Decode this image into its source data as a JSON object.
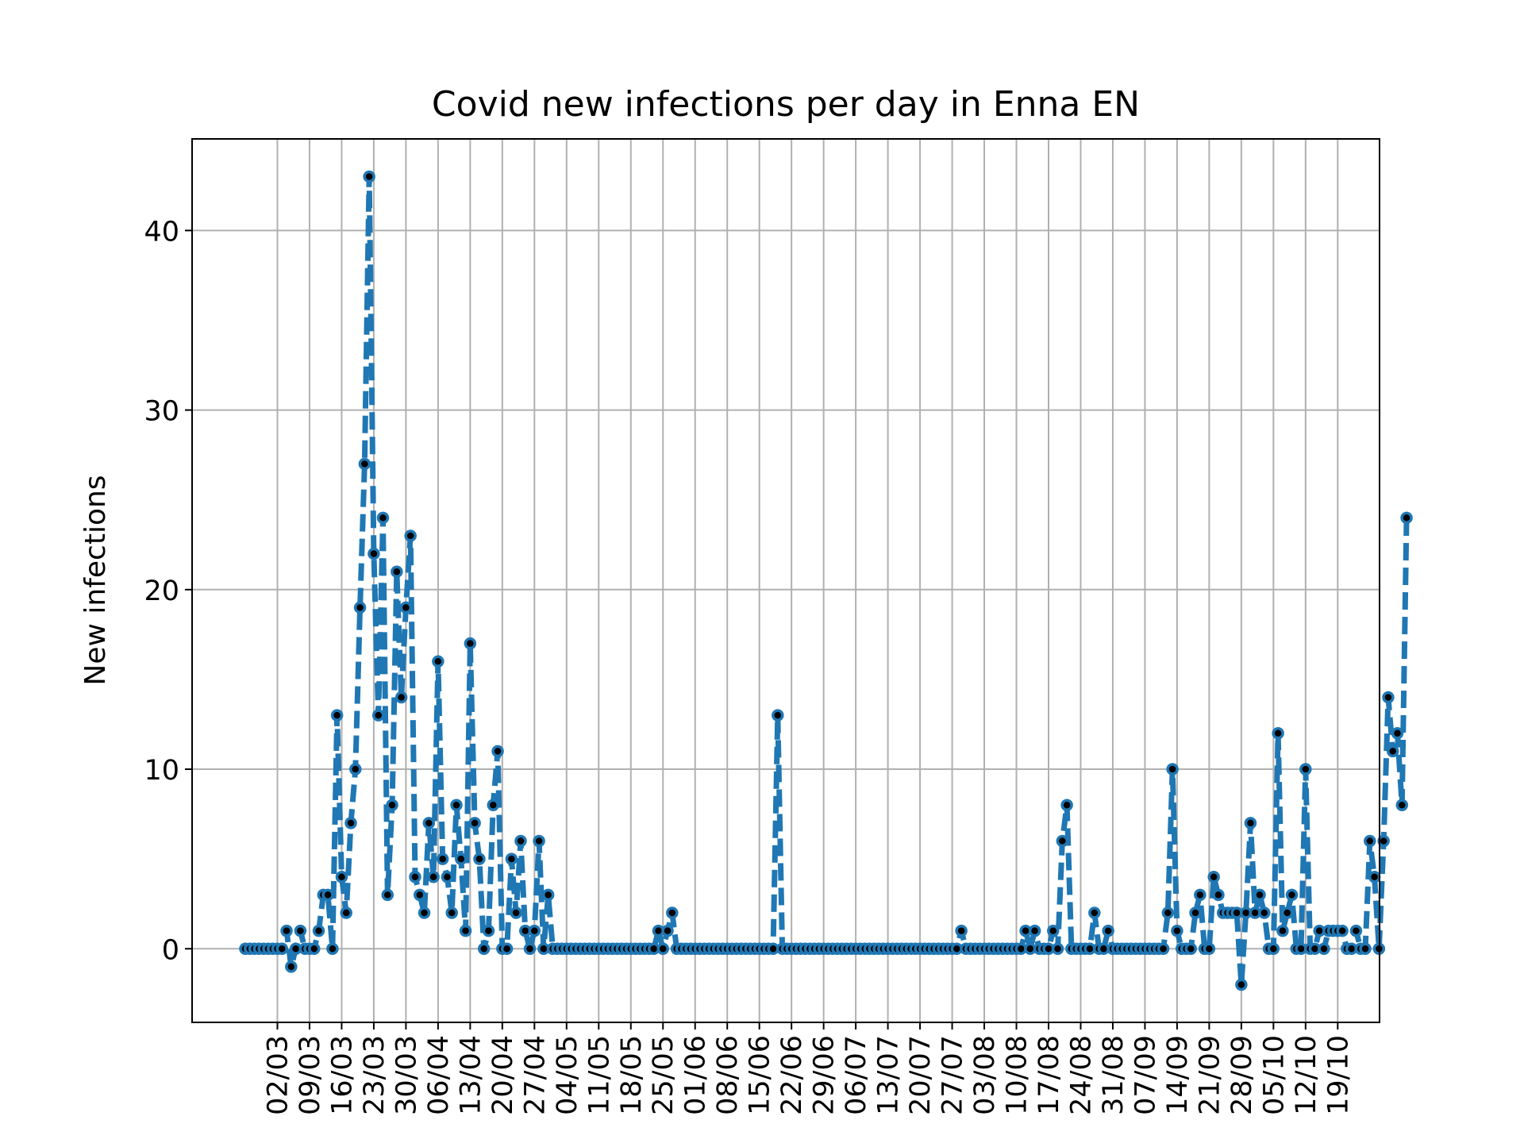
{
  "chart_data": {
    "type": "line",
    "title": "Covid new infections per day in Enna EN",
    "xlabel": "",
    "ylabel": "New infections",
    "ylim": [
      -4.1,
      45.1
    ],
    "yticks": [
      0,
      10,
      20,
      30,
      40
    ],
    "grid": true,
    "line_color": "#1f77b4",
    "marker_color": "#000000",
    "x_tick_labels": [
      "02/03",
      "09/03",
      "16/03",
      "23/03",
      "30/03",
      "06/04",
      "13/04",
      "20/04",
      "27/04",
      "04/05",
      "11/05",
      "18/05",
      "25/05",
      "01/06",
      "08/06",
      "15/06",
      "22/06",
      "29/06",
      "06/07",
      "13/07",
      "20/07",
      "27/07",
      "03/08",
      "10/08",
      "17/08",
      "24/08",
      "31/08",
      "07/09",
      "14/09",
      "21/09",
      "28/09",
      "05/10",
      "12/10",
      "19/10"
    ],
    "x_start_date": "24/02",
    "values": [
      0,
      0,
      0,
      0,
      0,
      0,
      0,
      0,
      0,
      1,
      -1,
      0,
      1,
      0,
      0,
      0,
      1,
      3,
      3,
      0,
      13,
      4,
      2,
      7,
      10,
      19,
      27,
      43,
      22,
      13,
      24,
      3,
      8,
      21,
      14,
      19,
      23,
      4,
      3,
      2,
      7,
      4,
      16,
      5,
      4,
      2,
      8,
      5,
      1,
      17,
      7,
      5,
      0,
      1,
      8,
      11,
      0,
      0,
      5,
      2,
      6,
      1,
      0,
      1,
      6,
      0,
      3,
      0,
      0,
      0,
      0,
      0,
      0,
      0,
      0,
      0,
      0,
      0,
      0,
      0,
      0,
      0,
      0,
      0,
      0,
      0,
      0,
      0,
      0,
      0,
      1,
      0,
      1,
      2,
      0,
      0,
      0,
      0,
      0,
      0,
      0,
      0,
      0,
      0,
      0,
      0,
      0,
      0,
      0,
      0,
      0,
      0,
      0,
      0,
      0,
      0,
      13,
      0,
      0,
      0,
      0,
      0,
      0,
      0,
      0,
      0,
      0,
      0,
      0,
      0,
      0,
      0,
      0,
      0,
      0,
      0,
      0,
      0,
      0,
      0,
      0,
      0,
      0,
      0,
      0,
      0,
      0,
      0,
      0,
      0,
      0,
      0,
      0,
      0,
      0,
      0,
      1,
      0,
      0,
      0,
      0,
      0,
      0,
      0,
      0,
      0,
      0,
      0,
      0,
      0,
      1,
      0,
      1,
      0,
      0,
      0,
      1,
      0,
      6,
      8,
      0,
      0,
      0,
      0,
      0,
      2,
      0,
      0,
      1,
      0,
      0,
      0,
      0,
      0,
      0,
      0,
      0,
      0,
      0,
      0,
      0,
      2,
      10,
      1,
      0,
      0,
      0,
      2,
      3,
      0,
      0,
      4,
      3,
      2,
      2,
      2,
      2,
      -2,
      2,
      7,
      2,
      3,
      2,
      0,
      0,
      12,
      1,
      2,
      3,
      0,
      0,
      10,
      0,
      0,
      1,
      0,
      1,
      1,
      1,
      1,
      0,
      0,
      1,
      0,
      0,
      6,
      4,
      0,
      6,
      14,
      11,
      12,
      8,
      24
    ]
  }
}
